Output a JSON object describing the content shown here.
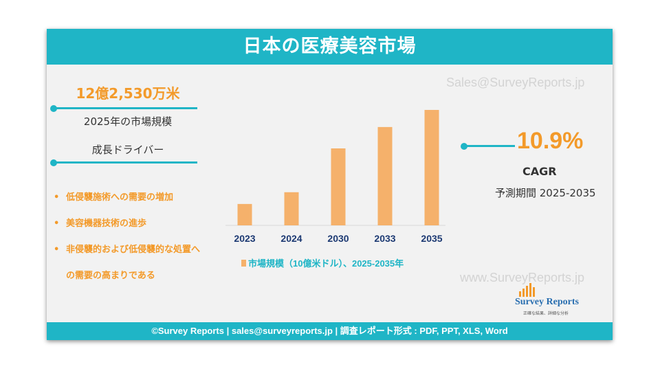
{
  "title": "日本の医療美容市場",
  "left": {
    "market_value": "12億2,530万米",
    "market_label": "2025年の市場規模",
    "drivers_title": "成長ドライバー",
    "drivers": [
      "低侵襲施術への需要の増加",
      "美容機器技術の進歩",
      "非侵襲的および低侵襲的な処置へ",
      "の需要の高まりである"
    ]
  },
  "right": {
    "cagr_value": "10.9%",
    "cagr_label": "CAGR",
    "period": "予測期間 2025-2035"
  },
  "watermarks": {
    "top": "Sales@SurveyReports.jp",
    "bottom": "www.SurveyReports.jp"
  },
  "logo": {
    "name": "Survey Reports",
    "tagline": "正確な結果、詳細な分析"
  },
  "footer": "©Survey Reports | sales@surveyreports.jp |  調査レポート形式 : PDF, PPT, XLS, Word",
  "colors": {
    "accent": "#1fb5c6",
    "bar": "#f5b16b",
    "orange": "#f39a2a"
  },
  "chart_data": {
    "type": "bar",
    "categories": [
      "2023",
      "2024",
      "2030",
      "2033",
      "2035"
    ],
    "series": [
      {
        "name": "市場規模（10億米ドル）、2025-2035年",
        "values": [
          1.0,
          1.55,
          3.6,
          4.6,
          5.4
        ]
      }
    ],
    "legend": "bottom",
    "grid": false
  }
}
